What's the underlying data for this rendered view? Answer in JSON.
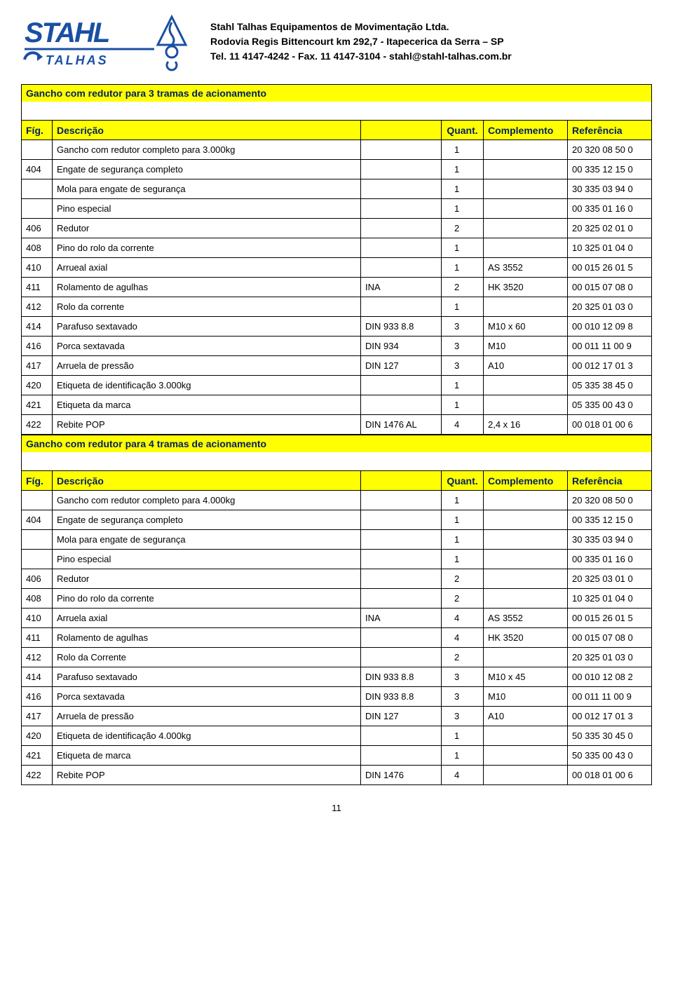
{
  "company": {
    "name": "Stahl Talhas Equipamentos de Movimentação Ltda.",
    "address": "Rodovia Regis Bittencourt km 292,7 - Itapecerica da Serra – SP",
    "contact": "Tel. 11 4147-4242 - Fax. 11 4147-3104 - stahl@stahl-talhas.com.br"
  },
  "logo": {
    "main_color": "#1a4fa3",
    "text_main": "STAHL",
    "text_sub": "TALHAS"
  },
  "columns": [
    "Fíg.",
    "Descrição",
    "",
    "Quant.",
    "Complemento",
    "Referência"
  ],
  "page_number": "11",
  "sections": [
    {
      "title": "Gancho  com redutor para 3 tramas de acionamento",
      "rows": [
        {
          "fig": "",
          "desc": "Gancho com redutor completo para  3.000kg",
          "spec": "",
          "qty": "1",
          "comp": "",
          "ref": "20 320 08 50 0"
        },
        {
          "fig": "404",
          "desc": "Engate de segurança completo",
          "spec": "",
          "qty": "1",
          "comp": "",
          "ref": "00 335 12 15 0"
        },
        {
          "fig": "",
          "desc": "Mola para engate de segurança",
          "spec": "",
          "qty": "1",
          "comp": "",
          "ref": "30 335 03 94 0"
        },
        {
          "fig": "",
          "desc": "Pino especial",
          "spec": "",
          "qty": "1",
          "comp": "",
          "ref": "00 335 01 16 0"
        },
        {
          "fig": "406",
          "desc": "Redutor",
          "spec": "",
          "qty": "2",
          "comp": "",
          "ref": "20 325 02 01 0"
        },
        {
          "fig": "408",
          "desc": "Pino do rolo da corrente",
          "spec": "",
          "qty": "1",
          "comp": "",
          "ref": "10 325 01 04 0"
        },
        {
          "fig": "410",
          "desc": "Arrueal axial",
          "spec": "",
          "qty": "1",
          "comp": "AS 3552",
          "ref": "00 015 26 01 5"
        },
        {
          "fig": "411",
          "desc": "Rolamento de agulhas",
          "spec": "INA",
          "qty": "2",
          "comp": "HK 3520",
          "ref": "00 015 07 08 0"
        },
        {
          "fig": "412",
          "desc": "Rolo da corrente",
          "spec": "",
          "qty": "1",
          "comp": "",
          "ref": "20 325 01 03 0"
        },
        {
          "fig": "414",
          "desc": "Parafuso sextavado",
          "spec": "DIN  933  8.8",
          "qty": "3",
          "comp": "M10 x 60",
          "ref": "00 010 12 09 8"
        },
        {
          "fig": "416",
          "desc": "Porca sextavada",
          "spec": "DIN 934",
          "qty": "3",
          "comp": "M10",
          "ref": "00 011 11 00 9"
        },
        {
          "fig": "417",
          "desc": "Arruela  de pressão",
          "spec": "DIN  127",
          "qty": "3",
          "comp": "A10",
          "ref": "00 012 17 01 3"
        },
        {
          "fig": "420",
          "desc": "Etiqueta de identificação  3.000kg",
          "spec": "",
          "qty": "1",
          "comp": "",
          "ref": "05 335 38 45 0"
        },
        {
          "fig": "421",
          "desc": "Etiqueta da marca",
          "spec": "",
          "qty": "1",
          "comp": "",
          "ref": "05 335 00 43 0"
        },
        {
          "fig": "422",
          "desc": "Rebite POP",
          "spec": "DIN  1476  AL",
          "qty": "4",
          "comp": "2,4 x 16",
          "ref": "00 018 01 00 6"
        }
      ]
    },
    {
      "title": "Gancho com redutor para 4 tramas de acionamento",
      "rows": [
        {
          "fig": "",
          "desc": "Gancho com redutor completo para  4.000kg",
          "spec": "",
          "qty": "1",
          "comp": "",
          "ref": "20 320 08 50 0"
        },
        {
          "fig": "404",
          "desc": "Engate de segurança completo",
          "spec": "",
          "qty": "1",
          "comp": "",
          "ref": "00 335 12 15 0"
        },
        {
          "fig": "",
          "desc": "Mola para engate de segurança",
          "spec": "",
          "qty": "1",
          "comp": "",
          "ref": "30 335 03 94 0"
        },
        {
          "fig": "",
          "desc": "Pino especial",
          "spec": "",
          "qty": "1",
          "comp": "",
          "ref": "00 335 01 16 0"
        },
        {
          "fig": "406",
          "desc": "Redutor",
          "spec": "",
          "qty": "2",
          "comp": "",
          "ref": "20 325 03 01 0"
        },
        {
          "fig": "408",
          "desc": "Pino do rolo da corrente",
          "spec": "",
          "qty": "2",
          "comp": "",
          "ref": "10 325 01 04 0"
        },
        {
          "fig": "410",
          "desc": "Arruela axial",
          "spec": "INA",
          "qty": "4",
          "comp": "AS 3552",
          "ref": "00 015 26 01 5"
        },
        {
          "fig": "411",
          "desc": "Rolamento de agulhas",
          "spec": "",
          "qty": "4",
          "comp": "HK  3520",
          "ref": "00 015 07 08 0"
        },
        {
          "fig": "412",
          "desc": "Rolo da Corrente",
          "spec": "",
          "qty": "2",
          "comp": "",
          "ref": "20 325 01 03 0"
        },
        {
          "fig": "414",
          "desc": "Parafuso sextavado",
          "spec": "DIN  933   8.8",
          "qty": "3",
          "comp": "M10 x 45",
          "ref": "00 010 12 08 2"
        },
        {
          "fig": "416",
          "desc": "Porca sextavada",
          "spec": "DIN  933  8.8",
          "qty": "3",
          "comp": "M10",
          "ref": "00 011 11 00 9"
        },
        {
          "fig": "417",
          "desc": "Arruela de pressão",
          "spec": "DIN  127",
          "qty": "3",
          "comp": "A10",
          "ref": "00 012 17 01 3"
        },
        {
          "fig": "420",
          "desc": "Etiqueta de identificação 4.000kg",
          "spec": "",
          "qty": "1",
          "comp": "",
          "ref": "50 335 30 45 0"
        },
        {
          "fig": "421",
          "desc": "Etiqueta de marca",
          "spec": "",
          "qty": "1",
          "comp": "",
          "ref": "50 335 00 43 0"
        },
        {
          "fig": "422",
          "desc": "Rebite POP",
          "spec": "DIN   1476",
          "qty": "4",
          "comp": "",
          "ref": "00 018 01 00 6"
        }
      ]
    }
  ]
}
